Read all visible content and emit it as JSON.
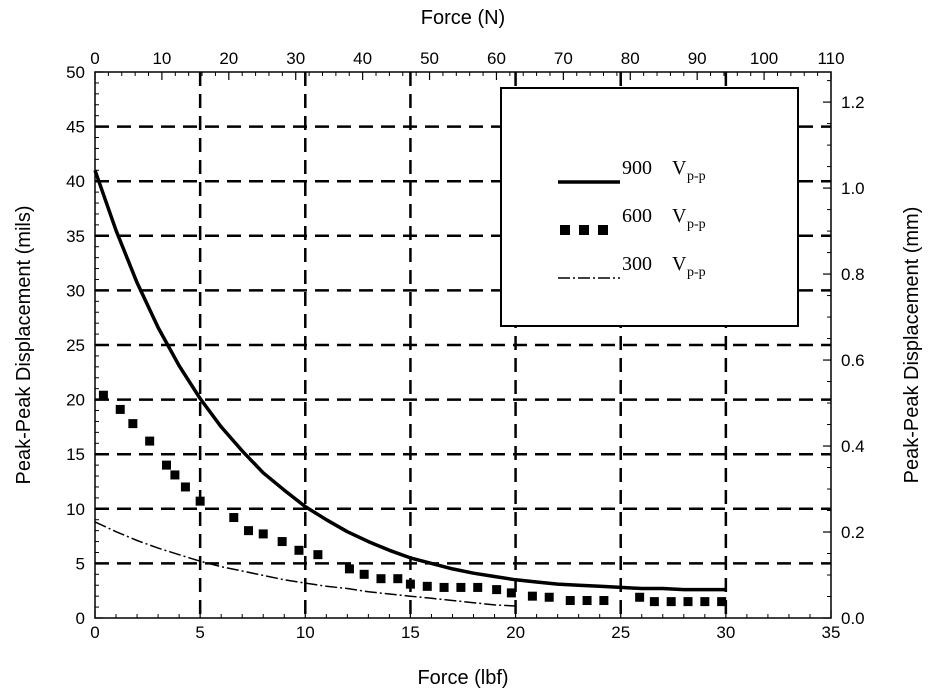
{
  "chart_data": {
    "type": "line",
    "x_bottom": {
      "label": "Force (lbf)",
      "range": [
        0,
        35
      ],
      "ticks": [
        "0",
        "5",
        "10",
        "15",
        "20",
        "25",
        "30",
        "35"
      ]
    },
    "x_top": {
      "label": "Force (N)",
      "range": [
        0,
        110
      ],
      "ticks": [
        "0",
        "10",
        "20",
        "30",
        "40",
        "50",
        "60",
        "70",
        "80",
        "90",
        "100",
        "110"
      ]
    },
    "y_left": {
      "label": "Peak-Peak Displacement (mils)",
      "range": [
        0,
        50
      ],
      "ticks": [
        "0",
        "5",
        "10",
        "15",
        "20",
        "25",
        "30",
        "35",
        "40",
        "45",
        "50"
      ]
    },
    "y_right": {
      "label": "Peak-Peak Displacement (mm)",
      "range": [
        0,
        1.27
      ],
      "ticks": [
        "0.0",
        "0.2",
        "0.4",
        "0.6",
        "0.8",
        "1.0",
        "1.2"
      ]
    },
    "grid": true,
    "grid_x": [
      5,
      10,
      15,
      20,
      25,
      30
    ],
    "grid_y_mm": [
      0.127,
      0.254,
      0.381,
      0.508,
      0.635,
      0.762,
      0.889,
      1.016,
      1.143
    ],
    "legend_position": "top-right",
    "series": [
      {
        "name": "900",
        "sub": "p-p",
        "style": "solid",
        "x": [
          0,
          1,
          2,
          3,
          4,
          5,
          6,
          7,
          8,
          9,
          10,
          11,
          12,
          13,
          14,
          15,
          16,
          17,
          18,
          19,
          20,
          21,
          22,
          23,
          24,
          25,
          26,
          27,
          28,
          29,
          30
        ],
        "y": [
          41,
          35.5,
          30.7,
          26.6,
          23.1,
          20.1,
          17.5,
          15.3,
          13.3,
          11.7,
          10.2,
          9.0,
          7.9,
          7.0,
          6.2,
          5.5,
          5.0,
          4.5,
          4.1,
          3.8,
          3.5,
          3.3,
          3.1,
          3.0,
          2.9,
          2.8,
          2.7,
          2.7,
          2.6,
          2.6,
          2.6
        ]
      },
      {
        "name": "600",
        "sub": "p-p",
        "style": "squares",
        "x": [
          0.4,
          1.2,
          1.8,
          2.6,
          3.4,
          3.8,
          4.3,
          5.0,
          6.6,
          7.3,
          8.0,
          8.9,
          9.7,
          10.6,
          12.1,
          12.8,
          13.6,
          14.4,
          15.0,
          15.8,
          16.6,
          17.4,
          18.2,
          19.1,
          19.8,
          20.8,
          21.6,
          22.6,
          23.4,
          24.2,
          25.9,
          26.6,
          27.4,
          28.2,
          29.0,
          29.8
        ],
        "y": [
          20.4,
          19.1,
          17.8,
          16.2,
          14.0,
          13.1,
          12.0,
          10.7,
          9.2,
          8.0,
          7.7,
          7.0,
          6.2,
          5.8,
          4.5,
          4.0,
          3.6,
          3.6,
          3.1,
          2.9,
          2.8,
          2.8,
          2.8,
          2.6,
          2.3,
          2.0,
          1.9,
          1.6,
          1.6,
          1.6,
          1.9,
          1.5,
          1.5,
          1.5,
          1.5,
          1.5
        ]
      },
      {
        "name": "300",
        "sub": "p-p",
        "style": "dash-dot",
        "x": [
          0,
          1,
          2,
          3,
          4,
          5,
          6,
          7,
          8,
          9,
          10,
          11,
          12,
          13,
          14,
          15,
          16,
          17,
          18,
          19,
          20
        ],
        "y": [
          8.8,
          7.9,
          7.1,
          6.4,
          5.8,
          5.2,
          4.7,
          4.3,
          3.9,
          3.5,
          3.2,
          2.9,
          2.7,
          2.4,
          2.2,
          2.0,
          1.8,
          1.6,
          1.4,
          1.2,
          1.1
        ]
      }
    ]
  },
  "legend_unit": "V"
}
